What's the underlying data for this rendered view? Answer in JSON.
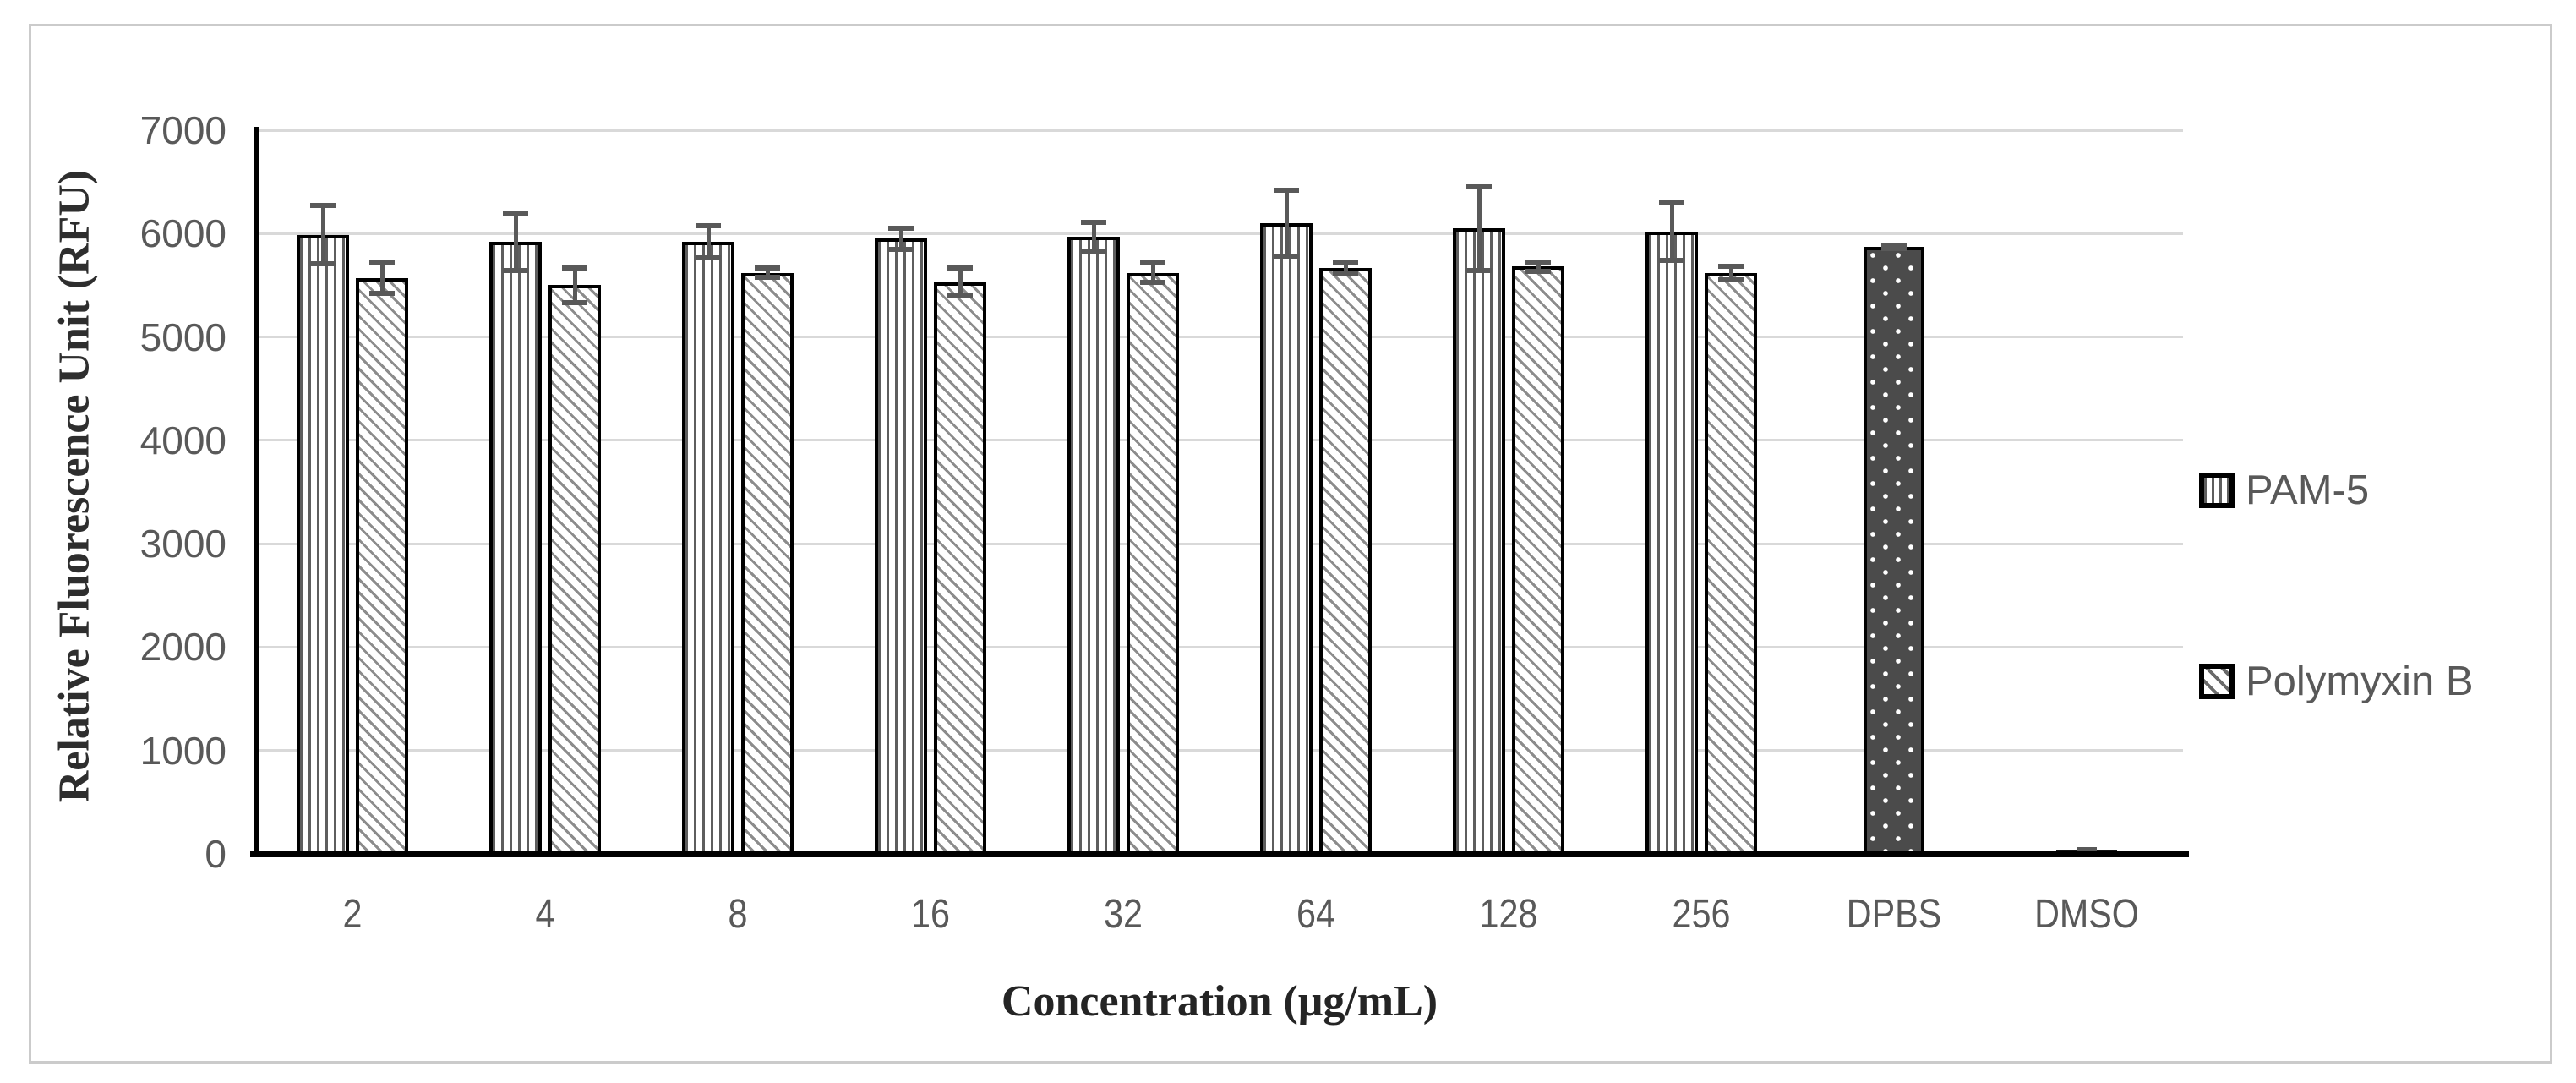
{
  "colors": {
    "text_gray": "#595959",
    "gridline": "#d9d9d9",
    "axis_line": "#000000",
    "bar_outline": "#000000",
    "error_bar": "#595959",
    "dpbs_fill": "#4b4b4b",
    "figure_border": "#cbcbcb"
  },
  "chart_data": {
    "type": "bar",
    "title": "",
    "xlabel": "Concentration (μg/mL)",
    "ylabel": "Relative Fluorescence Unit (RFU)",
    "ylim": [
      0,
      7000
    ],
    "ytick_step": 1000,
    "grid": "horizontal",
    "legend_position": "right",
    "categories": [
      "2",
      "4",
      "8",
      "16",
      "32",
      "64",
      "128",
      "256",
      "DPBS",
      "DMSO"
    ],
    "yticks": [
      "7000",
      "6000",
      "5000",
      "4000",
      "3000",
      "2000",
      "1000",
      "0"
    ],
    "series": [
      {
        "name": "PAM-5",
        "pattern": "vertical-stripes",
        "applies_to_categories": [
          "2",
          "4",
          "8",
          "16",
          "32",
          "64",
          "128",
          "256"
        ],
        "values": [
          5990,
          5920,
          5920,
          5950,
          5970,
          6100,
          6050,
          6020
        ],
        "errors": [
          310,
          300,
          180,
          130,
          160,
          340,
          430,
          300
        ]
      },
      {
        "name": "Polymyxin B",
        "pattern": "diagonal-hatch",
        "applies_to_categories": [
          "2",
          "4",
          "8",
          "16",
          "32",
          "64",
          "128",
          "256"
        ],
        "values": [
          5570,
          5500,
          5620,
          5530,
          5620,
          5670,
          5680,
          5620
        ],
        "errors": [
          170,
          190,
          70,
          160,
          120,
          80,
          70,
          90
        ]
      }
    ],
    "controls": [
      {
        "name": "DPBS",
        "pattern": "dark-dotted",
        "category": "DPBS",
        "value": 5870,
        "error": 40
      },
      {
        "name": "DMSO",
        "pattern": "solid-dark",
        "category": "DMSO",
        "value": 40,
        "error": 25
      }
    ]
  },
  "legend": {
    "items": [
      {
        "label": "PAM-5"
      },
      {
        "label": "Polymyxin B"
      }
    ]
  }
}
